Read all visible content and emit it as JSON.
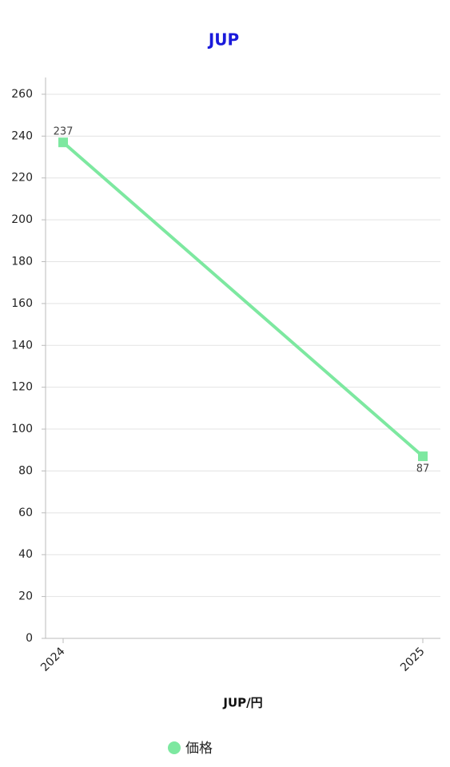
{
  "chart_data": {
    "type": "line",
    "title": "JUP",
    "x_label": "JUP/円",
    "categories": [
      "2024",
      "2025"
    ],
    "series": [
      {
        "name": "価格",
        "color": "#7de8a0",
        "values": [
          237,
          87
        ]
      }
    ],
    "ylim": [
      0,
      268
    ],
    "yticks": [
      0,
      20,
      40,
      60,
      80,
      100,
      120,
      140,
      160,
      180,
      200,
      220,
      240,
      260
    ],
    "grid": true,
    "legend": "bottom"
  }
}
